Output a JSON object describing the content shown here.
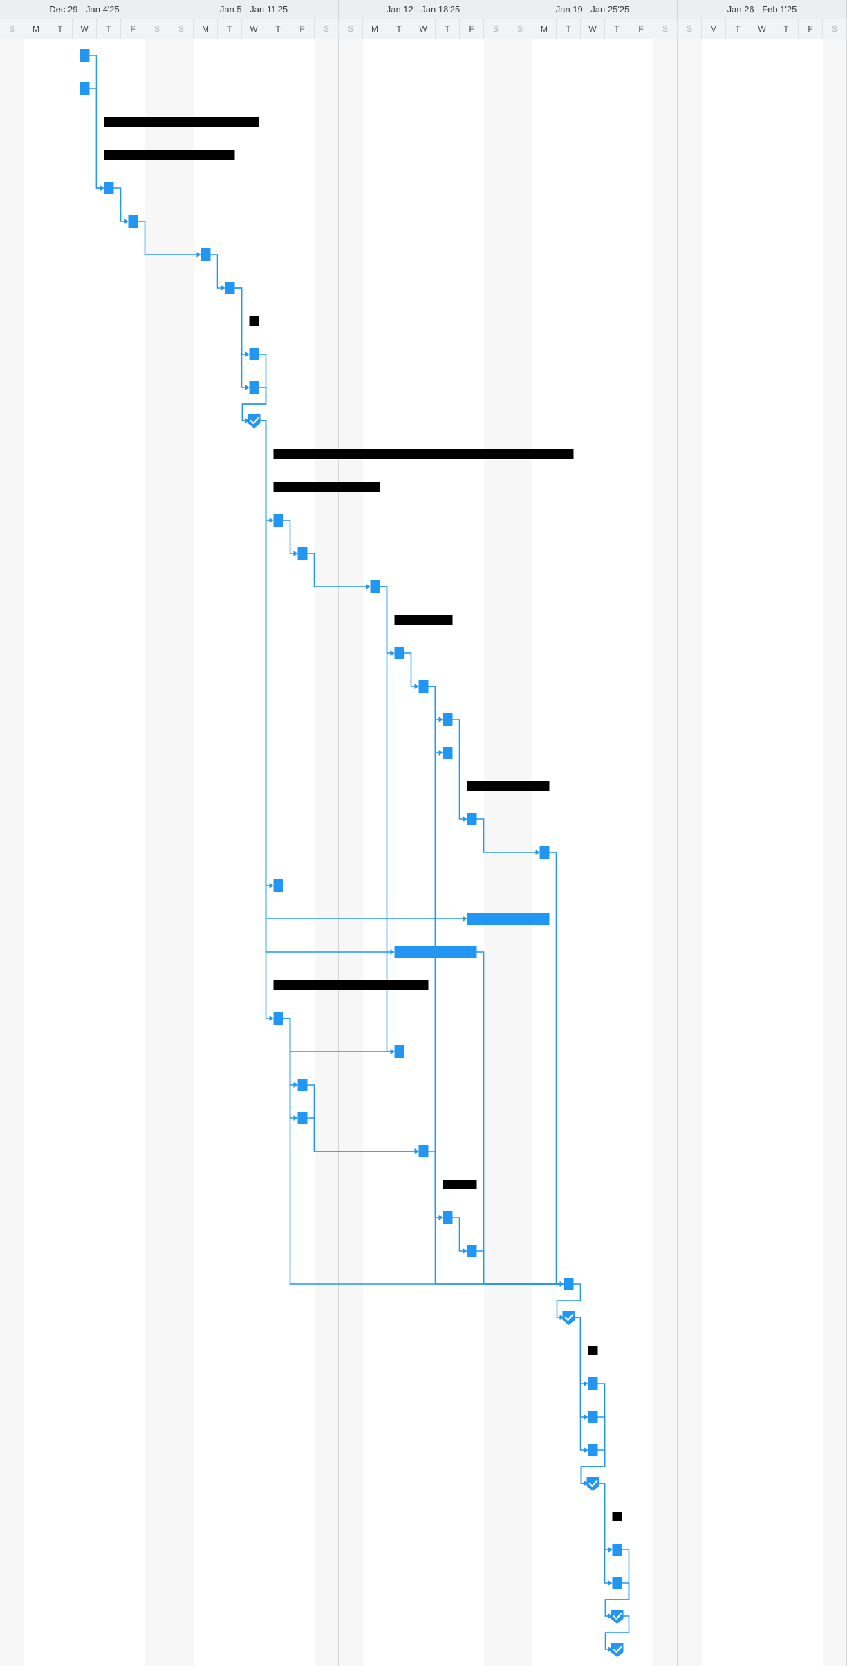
{
  "timeline": {
    "weeks": [
      "Dec 29 - Jan 4'25",
      "Jan 5 - Jan 11'25",
      "Jan 12 - Jan 18'25",
      "Jan 19 - Jan 25'25",
      "Jan 26 - Feb 1'25"
    ],
    "days": [
      "S",
      "M",
      "T",
      "W",
      "T",
      "F",
      "S",
      "S",
      "M",
      "T",
      "W",
      "T",
      "F",
      "S",
      "S",
      "M",
      "T",
      "W",
      "T",
      "F",
      "S",
      "S",
      "M",
      "T",
      "W",
      "T",
      "F",
      "S",
      "S",
      "M",
      "T",
      "W",
      "T",
      "F",
      "S"
    ],
    "weekend_indices": [
      0,
      6,
      7,
      13,
      14,
      20,
      21,
      27,
      28,
      34
    ]
  },
  "colors": {
    "task": "#2196f3",
    "summary": "#000000",
    "link": "#2196f3",
    "weekend": "#f7f7f8",
    "weekend_text": "#b3b6bb"
  },
  "tasks": [
    {
      "row": 0,
      "kind": "task",
      "start": 3.3,
      "end": 3.7
    },
    {
      "row": 1,
      "kind": "task",
      "start": 3.3,
      "end": 3.7
    },
    {
      "row": 2,
      "kind": "summary",
      "start": 4.3,
      "end": 10.7
    },
    {
      "row": 3,
      "kind": "summary",
      "start": 4.3,
      "end": 9.7
    },
    {
      "row": 4,
      "kind": "task",
      "start": 4.3,
      "end": 4.7
    },
    {
      "row": 5,
      "kind": "task",
      "start": 5.3,
      "end": 5.7
    },
    {
      "row": 6,
      "kind": "task",
      "start": 8.3,
      "end": 8.7
    },
    {
      "row": 7,
      "kind": "task",
      "start": 9.3,
      "end": 9.7
    },
    {
      "row": 8,
      "kind": "summary",
      "start": 10.3,
      "end": 10.7
    },
    {
      "row": 9,
      "kind": "task",
      "start": 10.3,
      "end": 10.7
    },
    {
      "row": 10,
      "kind": "task",
      "start": 10.3,
      "end": 10.7
    },
    {
      "row": 11,
      "kind": "milestone",
      "start": 10.3,
      "end": 10.7
    },
    {
      "row": 12,
      "kind": "summary",
      "start": 11.3,
      "end": 23.7
    },
    {
      "row": 13,
      "kind": "summary",
      "start": 11.3,
      "end": 15.7
    },
    {
      "row": 14,
      "kind": "task",
      "start": 11.3,
      "end": 11.7
    },
    {
      "row": 15,
      "kind": "task",
      "start": 12.3,
      "end": 12.7
    },
    {
      "row": 16,
      "kind": "task",
      "start": 15.3,
      "end": 15.7
    },
    {
      "row": 17,
      "kind": "summary",
      "start": 16.3,
      "end": 18.7
    },
    {
      "row": 18,
      "kind": "task",
      "start": 16.3,
      "end": 16.7
    },
    {
      "row": 19,
      "kind": "task",
      "start": 17.3,
      "end": 17.7
    },
    {
      "row": 20,
      "kind": "task",
      "start": 18.3,
      "end": 18.7
    },
    {
      "row": 21,
      "kind": "task",
      "start": 18.3,
      "end": 18.7
    },
    {
      "row": 22,
      "kind": "summary",
      "start": 19.3,
      "end": 22.7
    },
    {
      "row": 23,
      "kind": "task",
      "start": 19.3,
      "end": 19.7
    },
    {
      "row": 24,
      "kind": "task",
      "start": 22.3,
      "end": 22.7
    },
    {
      "row": 25,
      "kind": "task",
      "start": 11.3,
      "end": 11.7
    },
    {
      "row": 26,
      "kind": "task",
      "start": 19.3,
      "end": 22.7
    },
    {
      "row": 27,
      "kind": "task",
      "start": 16.3,
      "end": 19.7
    },
    {
      "row": 28,
      "kind": "summary",
      "start": 11.3,
      "end": 17.7
    },
    {
      "row": 29,
      "kind": "task",
      "start": 11.3,
      "end": 11.7
    },
    {
      "row": 30,
      "kind": "task",
      "start": 16.3,
      "end": 16.7
    },
    {
      "row": 31,
      "kind": "task",
      "start": 12.3,
      "end": 12.7
    },
    {
      "row": 32,
      "kind": "task",
      "start": 12.3,
      "end": 12.7
    },
    {
      "row": 33,
      "kind": "task",
      "start": 17.3,
      "end": 17.7
    },
    {
      "row": 34,
      "kind": "summary",
      "start": 18.3,
      "end": 19.7
    },
    {
      "row": 35,
      "kind": "task",
      "start": 18.3,
      "end": 18.7
    },
    {
      "row": 36,
      "kind": "task",
      "start": 19.3,
      "end": 19.7
    },
    {
      "row": 37,
      "kind": "task",
      "start": 23.3,
      "end": 23.7
    },
    {
      "row": 38,
      "kind": "milestone",
      "start": 23.3,
      "end": 23.7
    },
    {
      "row": 39,
      "kind": "summary",
      "start": 24.3,
      "end": 24.7
    },
    {
      "row": 40,
      "kind": "task",
      "start": 24.3,
      "end": 24.7
    },
    {
      "row": 41,
      "kind": "task",
      "start": 24.3,
      "end": 24.7
    },
    {
      "row": 42,
      "kind": "task",
      "start": 24.3,
      "end": 24.7
    },
    {
      "row": 43,
      "kind": "milestone",
      "start": 24.3,
      "end": 24.7
    },
    {
      "row": 44,
      "kind": "summary",
      "start": 25.3,
      "end": 25.7
    },
    {
      "row": 45,
      "kind": "task",
      "start": 25.3,
      "end": 25.7
    },
    {
      "row": 46,
      "kind": "task",
      "start": 25.3,
      "end": 25.7
    },
    {
      "row": 47,
      "kind": "milestone",
      "start": 25.3,
      "end": 25.7
    },
    {
      "row": 48,
      "kind": "milestone",
      "start": 25.3,
      "end": 25.7
    }
  ],
  "links": [
    [
      0,
      4
    ],
    [
      1,
      4
    ],
    [
      4,
      5
    ],
    [
      5,
      6
    ],
    [
      6,
      7
    ],
    [
      7,
      9
    ],
    [
      7,
      10
    ],
    [
      9,
      11
    ],
    [
      10,
      11
    ],
    [
      11,
      14
    ],
    [
      11,
      25
    ],
    [
      11,
      26
    ],
    [
      11,
      27
    ],
    [
      11,
      29
    ],
    [
      14,
      15
    ],
    [
      15,
      16
    ],
    [
      16,
      18
    ],
    [
      16,
      30
    ],
    [
      18,
      19
    ],
    [
      19,
      20
    ],
    [
      19,
      21
    ],
    [
      19,
      35
    ],
    [
      19,
      37
    ],
    [
      20,
      23
    ],
    [
      23,
      24
    ],
    [
      24,
      37
    ],
    [
      29,
      30
    ],
    [
      29,
      31
    ],
    [
      29,
      32
    ],
    [
      29,
      37
    ],
    [
      31,
      33
    ],
    [
      32,
      33
    ],
    [
      33,
      35
    ],
    [
      35,
      36
    ],
    [
      36,
      37
    ],
    [
      27,
      37
    ],
    [
      37,
      38
    ],
    [
      38,
      40
    ],
    [
      38,
      41
    ],
    [
      38,
      42
    ],
    [
      40,
      43
    ],
    [
      41,
      43
    ],
    [
      42,
      43
    ],
    [
      43,
      45
    ],
    [
      43,
      46
    ],
    [
      45,
      47
    ],
    [
      46,
      47
    ],
    [
      47,
      48
    ]
  ]
}
